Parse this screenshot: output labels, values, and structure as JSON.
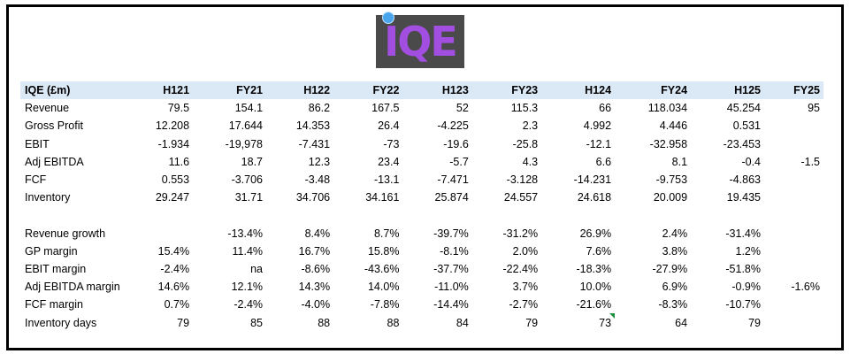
{
  "logo": {
    "text": "IQE",
    "brand_color": "#a24ee0",
    "background": "#4a4a4a"
  },
  "table": {
    "header_label": "IQE (£m)",
    "columns": [
      "H121",
      "FY21",
      "H122",
      "FY22",
      "H123",
      "FY23",
      "H124",
      "FY24",
      "H125",
      "FY25"
    ],
    "group1": [
      {
        "label": "Revenue",
        "values": [
          "79.5",
          "154.1",
          "86.2",
          "167.5",
          "52",
          "115.3",
          "66",
          "118.034",
          "45.254",
          "95"
        ]
      },
      {
        "label": "Gross Profit",
        "values": [
          "12.208",
          "17.644",
          "14.353",
          "26.4",
          "-4.225",
          "2.3",
          "4.992",
          "4.446",
          "0.531",
          ""
        ]
      },
      {
        "label": "EBIT",
        "values": [
          "-1.934",
          "-19,978",
          "-7.431",
          "-73",
          "-19.6",
          "-25.8",
          "-12.1",
          "-32.958",
          "-23.453",
          ""
        ]
      },
      {
        "label": "Adj EBITDA",
        "values": [
          "11.6",
          "18.7",
          "12.3",
          "23.4",
          "-5.7",
          "4.3",
          "6.6",
          "8.1",
          "-0.4",
          "-1.5"
        ]
      },
      {
        "label": "FCF",
        "values": [
          "0.553",
          "-3.706",
          "-3.48",
          "-13.1",
          "-7.471",
          "-3.128",
          "-14.231",
          "-9.753",
          "-4.863",
          ""
        ]
      },
      {
        "label": "Inventory",
        "values": [
          "29.247",
          "31.71",
          "34.706",
          "34.161",
          "25.874",
          "24.557",
          "24.618",
          "20.009",
          "19.435",
          ""
        ]
      }
    ],
    "group2": [
      {
        "label": "Revenue growth",
        "values": [
          "",
          "-13.4%",
          "8.4%",
          "8.7%",
          "-39.7%",
          "-31.2%",
          "26.9%",
          "2.4%",
          "-31.4%",
          ""
        ]
      },
      {
        "label": "GP margin",
        "values": [
          "15.4%",
          "11.4%",
          "16.7%",
          "15.8%",
          "-8.1%",
          "2.0%",
          "7.6%",
          "3.8%",
          "1.2%",
          ""
        ]
      },
      {
        "label": "EBIT margin",
        "values": [
          "-2.4%",
          "na",
          "-8.6%",
          "-43.6%",
          "-37.7%",
          "-22.4%",
          "-18.3%",
          "-27.9%",
          "-51.8%",
          ""
        ]
      },
      {
        "label": "Adj EBITDA margin",
        "values": [
          "14.6%",
          "12.1%",
          "14.3%",
          "14.0%",
          "-11.0%",
          "3.7%",
          "10.0%",
          "6.9%",
          "-0.9%",
          "-1.6%"
        ]
      },
      {
        "label": "FCF margin",
        "values": [
          "0.7%",
          "-2.4%",
          "-4.0%",
          "-7.8%",
          "-14.4%",
          "-2.7%",
          "-21.6%",
          "-8.3%",
          "-10.7%",
          ""
        ]
      },
      {
        "label": "Inventory days",
        "values": [
          "79",
          "85",
          "88",
          "88",
          "84",
          "79",
          "73",
          "64",
          "79",
          ""
        ]
      }
    ]
  }
}
